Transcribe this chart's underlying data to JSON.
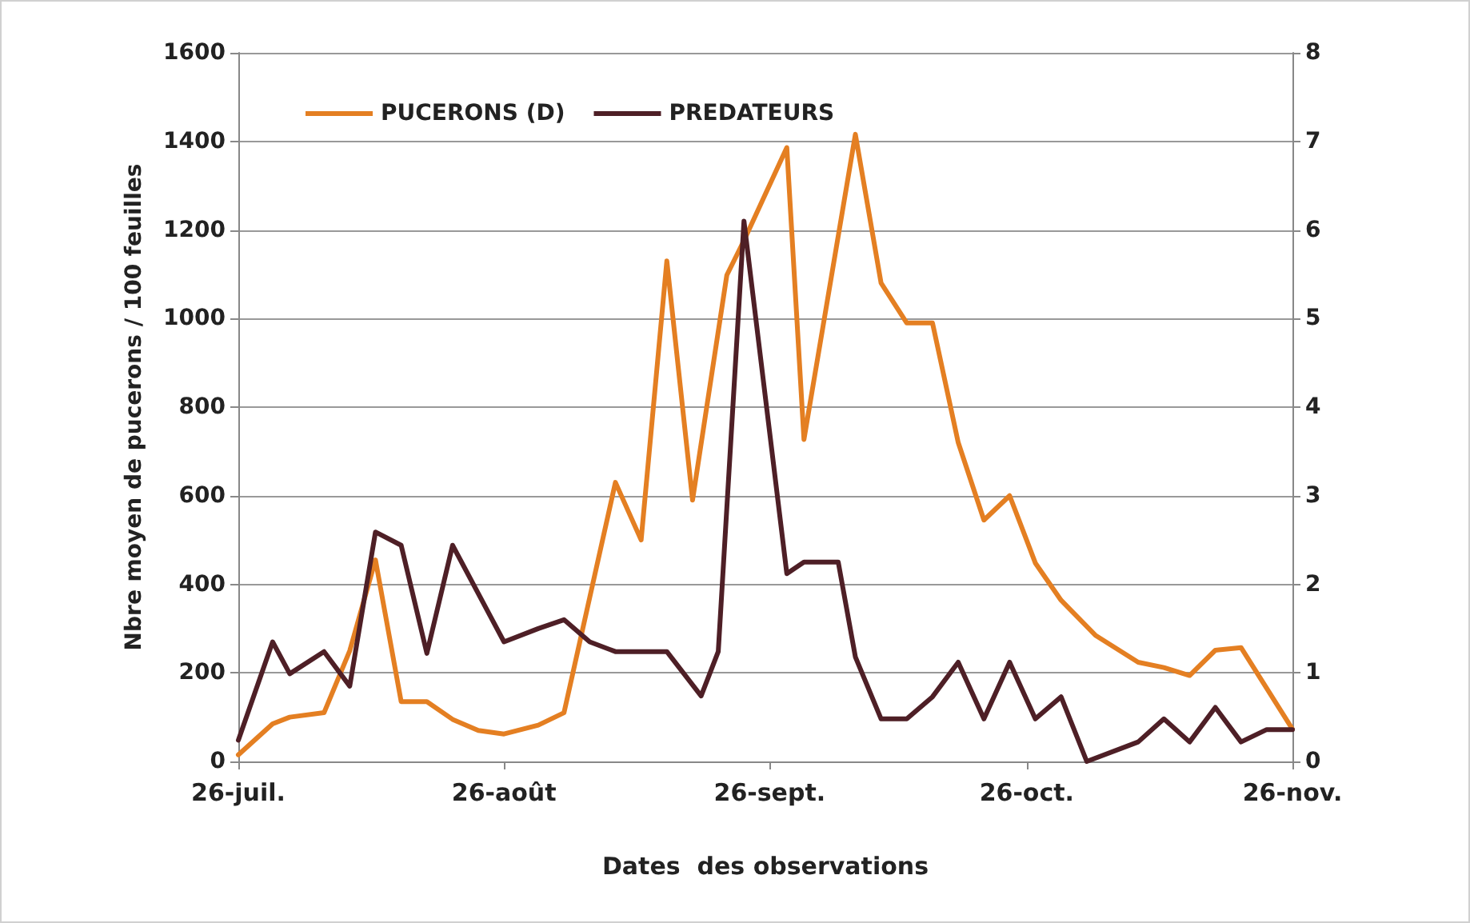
{
  "chart_data": {
    "type": "line",
    "xlabel": "Dates  des observations",
    "ylabel": "Nbre moyen de pucerons / 100 feuilles",
    "xlim": [
      "--07-26",
      "--11-26"
    ],
    "xticks": [
      {
        "value": "--07-26",
        "label": "26-juil."
      },
      {
        "value": "--08-26",
        "label": "26-août"
      },
      {
        "value": "--09-26",
        "label": "26-sept."
      },
      {
        "value": "--10-26",
        "label": "26-oct."
      },
      {
        "value": "--11-26",
        "label": "26-nov."
      }
    ],
    "ylim": [
      0,
      1600
    ],
    "yticks": [
      0,
      200,
      400,
      600,
      800,
      1000,
      1200,
      1400,
      1600
    ],
    "y2lim": [
      0,
      8
    ],
    "y2ticks": [
      0,
      1,
      2,
      3,
      4,
      5,
      6,
      7,
      8
    ],
    "grid": "y",
    "legend": "top left",
    "marker": "none",
    "line_style": "solid",
    "series": [
      {
        "name": "PUCERONS (D)",
        "color": "#e47f22",
        "x": [
          "--07-26",
          "--07-30",
          "--08-01",
          "--08-05",
          "--08-08",
          "--08-11",
          "--08-14",
          "--08-17",
          "--08-20",
          "--08-23",
          "--08-26",
          "--08-30",
          "--09-02",
          "--09-05",
          "--09-08",
          "--09-11",
          "--09-14",
          "--09-17",
          "--09-21",
          "--09-23",
          "--09-28",
          "--09-30",
          "--10-06",
          "--10-09",
          "--10-12",
          "--10-15",
          "--10-18",
          "--10-21",
          "--10-24",
          "--10-27",
          "--10-30",
          "--11-03",
          "--11-08",
          "--11-11",
          "--11-14",
          "--11-17",
          "--11-20",
          "--11-26"
        ],
        "values": [
          15,
          85,
          100,
          110,
          250,
          455,
          135,
          135,
          95,
          70,
          62,
          82,
          110,
          370,
          630,
          500,
          1130,
          590,
          1098,
          1176,
          1386,
          727,
          1416,
          1080,
          990,
          990,
          720,
          545,
          600,
          448,
          364,
          285,
          224,
          212,
          194,
          251,
          257,
          73
        ]
      },
      {
        "name": "PREDATEURS",
        "color": "#4e1f26",
        "axis": "y2",
        "x": [
          "--07-26",
          "--07-30",
          "--08-01",
          "--08-05",
          "--08-08",
          "--08-11",
          "--08-14",
          "--08-17",
          "--08-20",
          "--08-26",
          "--08-30",
          "--09-02",
          "--09-05",
          "--09-08",
          "--09-11",
          "--09-14",
          "--09-18",
          "--09-20",
          "--09-23",
          "--09-28",
          "--09-30",
          "--10-04",
          "--10-06",
          "--10-09",
          "--10-12",
          "--10-15",
          "--10-18",
          "--10-21",
          "--10-24",
          "--10-27",
          "--10-30",
          "--11-02",
          "--11-08",
          "--11-11",
          "--11-14",
          "--11-17",
          "--11-20",
          "--11-23",
          "--11-26"
        ],
        "values": [
          0.24,
          1.35,
          0.99,
          1.24,
          0.85,
          2.59,
          2.44,
          1.22,
          2.44,
          1.35,
          1.5,
          1.6,
          1.35,
          1.24,
          1.24,
          1.24,
          0.74,
          1.24,
          6.1,
          2.12,
          2.25,
          2.25,
          1.18,
          0.48,
          0.48,
          0.73,
          1.12,
          0.48,
          1.12,
          0.48,
          0.73,
          0,
          0.22,
          0.48,
          0.22,
          0.61,
          0.22,
          0.36,
          0.36
        ]
      }
    ]
  }
}
